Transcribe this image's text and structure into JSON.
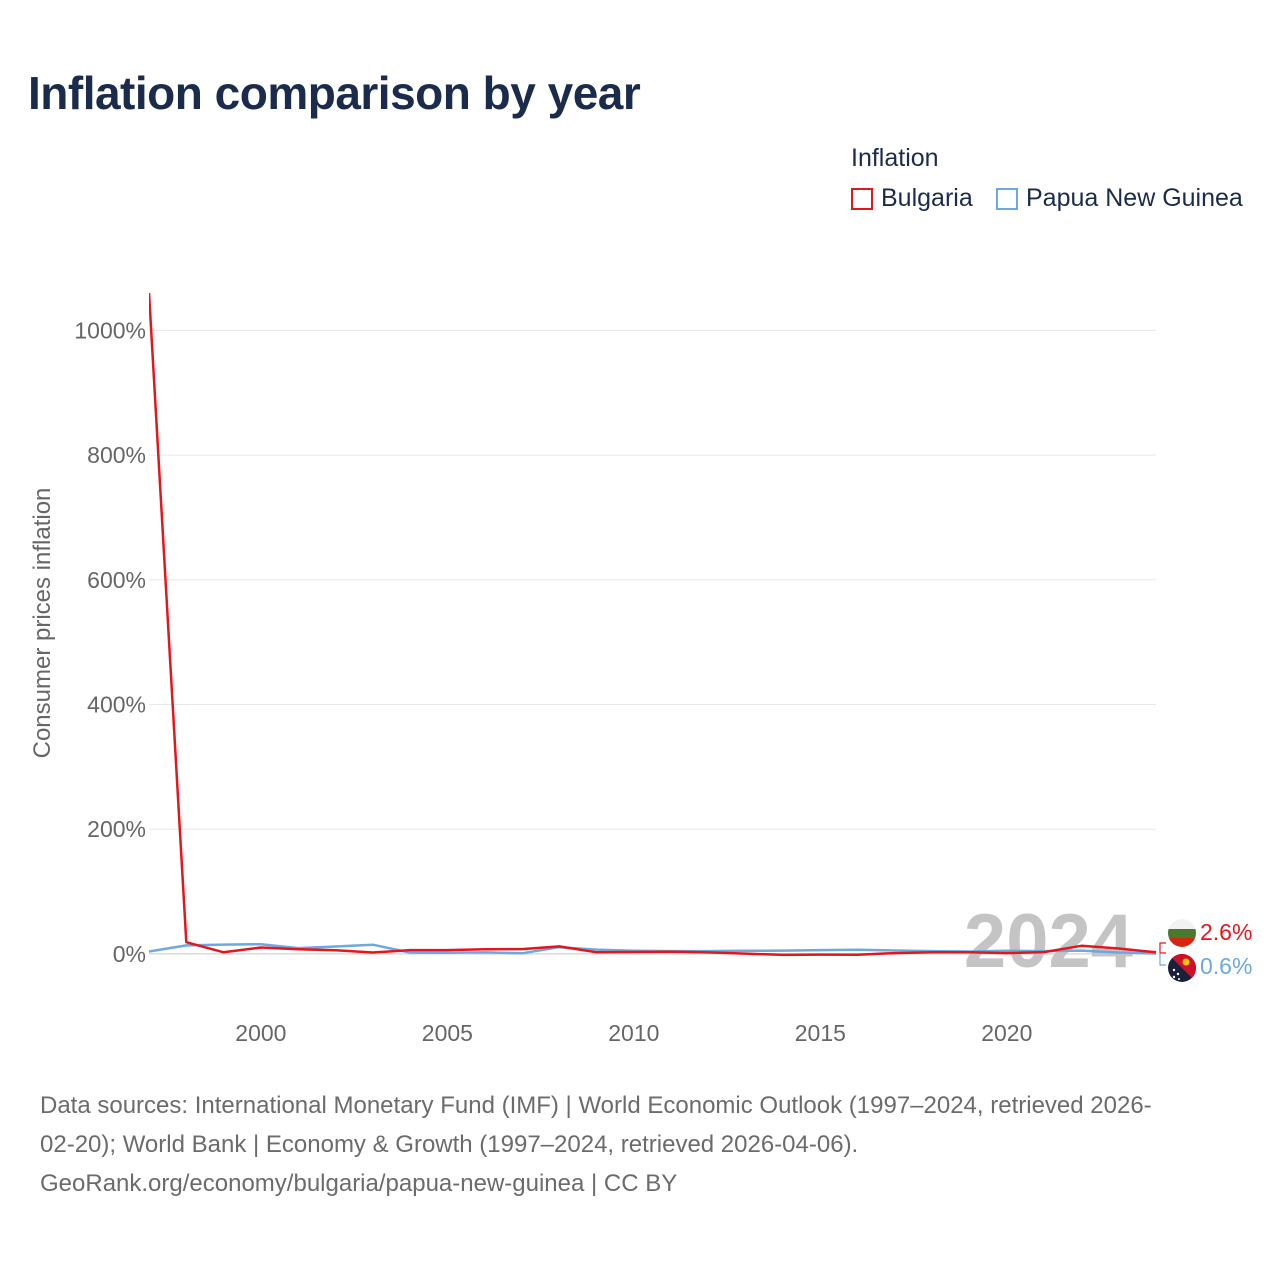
{
  "title": "Inflation comparison by year",
  "legend": {
    "title": "Inflation",
    "items": [
      {
        "name": "Bulgaria",
        "color": "#e4161d"
      },
      {
        "name": "Papua New Guinea",
        "color": "#6da8de"
      }
    ]
  },
  "chart_data": {
    "type": "line",
    "title": "Inflation comparison by year",
    "ylabel": "Consumer prices inflation",
    "xlabel": "",
    "xlim": [
      1997,
      2024
    ],
    "ylim": [
      -90,
      1060
    ],
    "yticks": [
      0,
      200,
      400,
      600,
      800,
      1000
    ],
    "ytick_labels": [
      "0%",
      "200%",
      "400%",
      "600%",
      "800%",
      "1000%"
    ],
    "xticks": [
      2000,
      2005,
      2010,
      2015,
      2020
    ],
    "xtick_labels": [
      "2000",
      "2005",
      "2010",
      "2015",
      "2020"
    ],
    "grid": true,
    "legend_position": "top-right",
    "x": [
      1997,
      1998,
      1999,
      2000,
      2001,
      2002,
      2003,
      2004,
      2005,
      2006,
      2007,
      2008,
      2009,
      2010,
      2011,
      2012,
      2013,
      2014,
      2015,
      2016,
      2017,
      2018,
      2019,
      2020,
      2021,
      2022,
      2023,
      2024
    ],
    "series": [
      {
        "name": "Bulgaria",
        "color": "#e4161d",
        "values": [
          1061,
          18.7,
          2.6,
          10.3,
          7.4,
          5.8,
          2.3,
          6.1,
          6.0,
          7.4,
          7.6,
          12.0,
          2.5,
          3.0,
          3.4,
          2.4,
          0.4,
          -1.6,
          -1.1,
          -1.3,
          1.2,
          2.6,
          2.5,
          1.2,
          2.8,
          13.0,
          8.6,
          2.6
        ]
      },
      {
        "name": "Papua New Guinea",
        "color": "#6da8de",
        "values": [
          3.9,
          13.6,
          14.9,
          15.6,
          9.3,
          11.8,
          14.7,
          2.1,
          1.8,
          2.4,
          0.9,
          10.8,
          6.9,
          5.1,
          4.4,
          4.5,
          5.0,
          5.2,
          6.0,
          6.7,
          5.4,
          4.5,
          3.9,
          4.9,
          4.5,
          5.3,
          2.3,
          0.6
        ]
      }
    ],
    "year_label": "2024",
    "end_labels": [
      {
        "country": "Bulgaria",
        "value_label": "2.6%",
        "color": "#e4161d"
      },
      {
        "country": "Papua New Guinea",
        "value_label": "0.6%",
        "color": "#6da8de"
      }
    ]
  },
  "source": {
    "line1": "Data sources: International Monetary Fund (IMF) | World Economic Outlook (1997–2024, retrieved 2026-",
    "line2": "02-20); World Bank | Economy & Growth (1997–2024, retrieved 2026-04-06).",
    "line3": "GeoRank.org/economy/bulgaria/papua-new-guinea | CC BY"
  }
}
